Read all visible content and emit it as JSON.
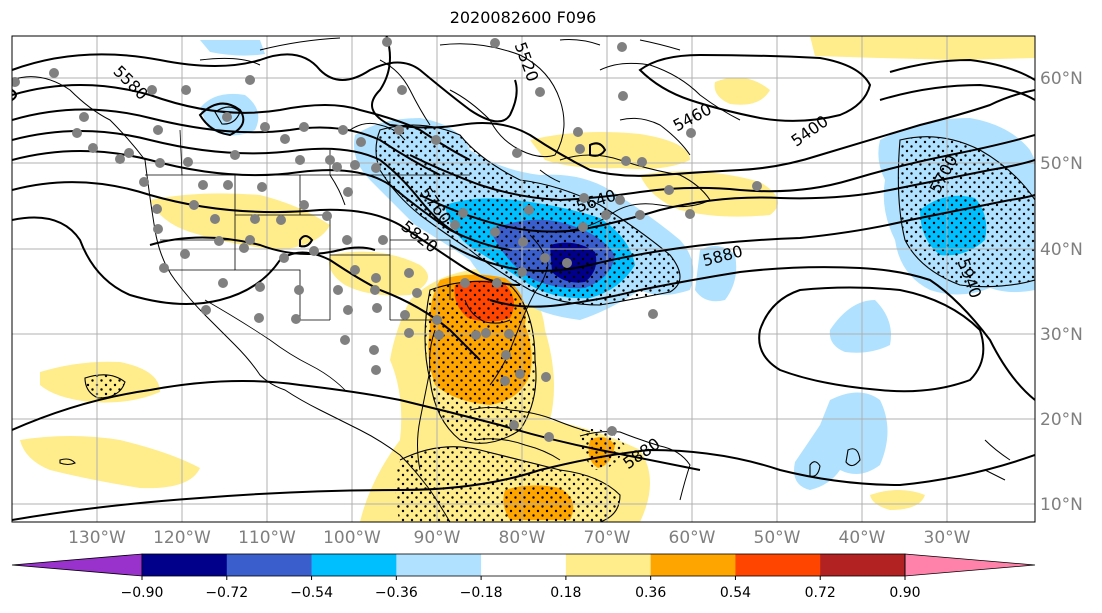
{
  "title": "2020082600 F096",
  "lon_labels": [
    "130°W",
    "120°W",
    "110°W",
    "100°W",
    "90°W",
    "80°W",
    "70°W",
    "60°W",
    "50°W",
    "40°W",
    "30°W"
  ],
  "lat_labels": [
    "60°N",
    "50°N",
    "40°N",
    "30°N",
    "20°N",
    "10°N"
  ],
  "colorbar": {
    "tick_labels": [
      "−0.90",
      "−0.72",
      "−0.54",
      "−0.36",
      "−0.18",
      "0.18",
      "0.36",
      "0.54",
      "0.72",
      "0.90"
    ],
    "colors": [
      "#9932cc",
      "#00008b",
      "#3a5fcd",
      "#00bfff",
      "#b0e2ff",
      "#ffffff",
      "#ffec8b",
      "#ffa500",
      "#ff4500",
      "#b22222",
      "#ff82ab"
    ]
  },
  "contour_labels": [
    "5580",
    "5460",
    "5400",
    "5700",
    "5640",
    "5760",
    "5820",
    "5880",
    "5940",
    "5880",
    "5880",
    "5520"
  ]
}
